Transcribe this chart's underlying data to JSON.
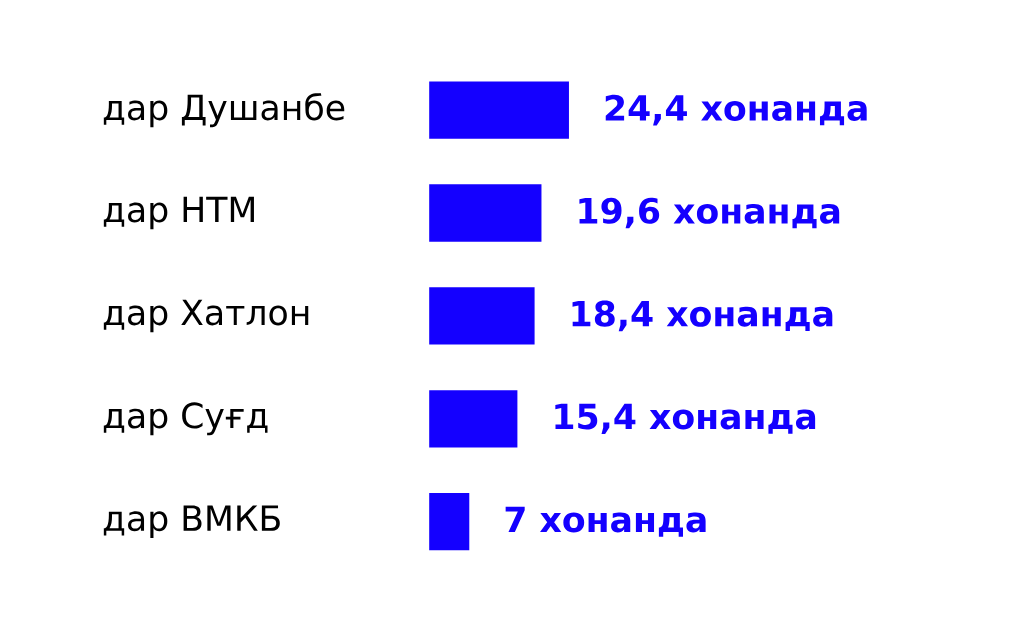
{
  "chart_data": {
    "type": "bar",
    "orientation": "horizontal",
    "categories": [
      "дар Душанбе",
      "дар НТМ",
      "дар Хатлон",
      "дар Суғд",
      "дар ВМКБ"
    ],
    "values": [
      24.4,
      19.6,
      18.4,
      15.4,
      7
    ],
    "value_labels": [
      "24,4 хонанда",
      "19,6 хонанда",
      "18,4 хонанда",
      "15,4 хонанда",
      "7 хонанда"
    ],
    "color": "#1400ff"
  }
}
